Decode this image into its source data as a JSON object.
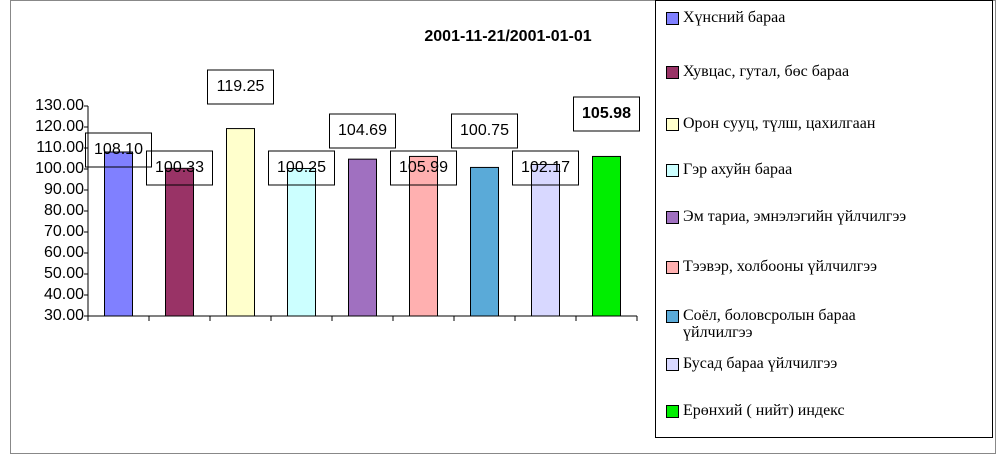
{
  "chart_data": {
    "type": "bar",
    "title": "2001-11-21/2001-01-01",
    "categories": [
      "Хүнсний бараа",
      "Хувцас, гутал, бөс бараа",
      "Орон сууц, түлш, цахилгаан",
      "Гэр ахуйн бараа",
      "Эм тариа, эмнэлэгийн үйлчилгээ",
      "Тээвэр, холбооны үйлчилгээ",
      "Соёл, боловсролын бараа үйлчилгээ",
      "Бусад бараа үйлчилгээ",
      "Ерөнхий ( нийт) индекс"
    ],
    "values": [
      108.1,
      100.33,
      119.25,
      100.25,
      104.69,
      105.99,
      100.75,
      102.17,
      105.98
    ],
    "value_labels": [
      "108.10",
      "100.33",
      "119.25",
      "100.25",
      "104.69",
      "105.99",
      "100.75",
      "102.17",
      "105.98"
    ],
    "colors": [
      "#8080ff",
      "#993366",
      "#ffffcc",
      "#ccffff",
      "#a070c0",
      "#ffb0b0",
      "#5aaad8",
      "#d8d8ff",
      "#00ee00"
    ],
    "ylim": [
      30,
      130
    ],
    "yticks": [
      {
        "value": 30,
        "label": "30.00"
      },
      {
        "value": 40,
        "label": "40.00"
      },
      {
        "value": 50,
        "label": "50.00"
      },
      {
        "value": 60,
        "label": "60.00"
      },
      {
        "value": 70,
        "label": "70.00"
      },
      {
        "value": 80,
        "label": "80.00"
      },
      {
        "value": 90,
        "label": "90.00"
      },
      {
        "value": 100,
        "label": "100.00"
      },
      {
        "value": 110,
        "label": "110.00"
      },
      {
        "value": 120,
        "label": "120.00"
      },
      {
        "value": 130,
        "label": "130.00"
      }
    ],
    "legend": "right"
  }
}
